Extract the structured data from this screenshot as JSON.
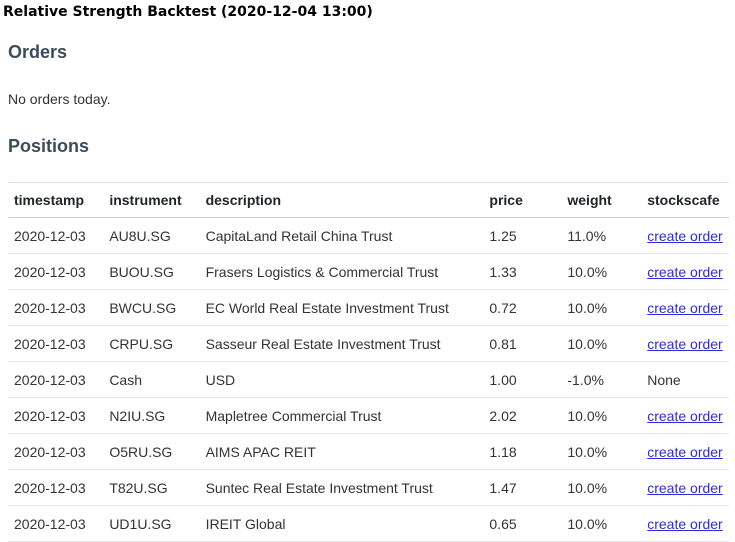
{
  "window": {
    "title": "Relative Strength Backtest (2020-12-04 13:00)"
  },
  "orders": {
    "heading": "Orders",
    "note": "No orders today."
  },
  "positions": {
    "heading": "Positions",
    "columns": [
      "timestamp",
      "instrument",
      "description",
      "price",
      "weight",
      "stockscafe"
    ],
    "rows": [
      {
        "timestamp": "2020-12-03",
        "instrument": "AU8U.SG",
        "description": "CapitaLand Retail China Trust",
        "price": "1.25",
        "weight": "11.0%",
        "stockscafe": "create order",
        "is_link": true
      },
      {
        "timestamp": "2020-12-03",
        "instrument": "BUOU.SG",
        "description": "Frasers Logistics & Commercial Trust",
        "price": "1.33",
        "weight": "10.0%",
        "stockscafe": "create order",
        "is_link": true
      },
      {
        "timestamp": "2020-12-03",
        "instrument": "BWCU.SG",
        "description": "EC World Real Estate Investment Trust",
        "price": "0.72",
        "weight": "10.0%",
        "stockscafe": "create order",
        "is_link": true
      },
      {
        "timestamp": "2020-12-03",
        "instrument": "CRPU.SG",
        "description": "Sasseur Real Estate Investment Trust",
        "price": "0.81",
        "weight": "10.0%",
        "stockscafe": "create order",
        "is_link": true
      },
      {
        "timestamp": "2020-12-03",
        "instrument": "Cash",
        "description": "USD",
        "price": "1.00",
        "weight": "-1.0%",
        "stockscafe": "None",
        "is_link": false
      },
      {
        "timestamp": "2020-12-03",
        "instrument": "N2IU.SG",
        "description": "Mapletree Commercial Trust",
        "price": "2.02",
        "weight": "10.0%",
        "stockscafe": "create order",
        "is_link": true
      },
      {
        "timestamp": "2020-12-03",
        "instrument": "O5RU.SG",
        "description": "AIMS APAC REIT",
        "price": "1.18",
        "weight": "10.0%",
        "stockscafe": "create order",
        "is_link": true
      },
      {
        "timestamp": "2020-12-03",
        "instrument": "T82U.SG",
        "description": "Suntec Real Estate Investment Trust",
        "price": "1.47",
        "weight": "10.0%",
        "stockscafe": "create order",
        "is_link": true
      },
      {
        "timestamp": "2020-12-03",
        "instrument": "UD1U.SG",
        "description": "IREIT Global",
        "price": "0.65",
        "weight": "10.0%",
        "stockscafe": "create order",
        "is_link": true
      }
    ]
  },
  "colors": {
    "heading": "#3a4b5c",
    "link": "#2c2cd6",
    "text": "#333333"
  }
}
